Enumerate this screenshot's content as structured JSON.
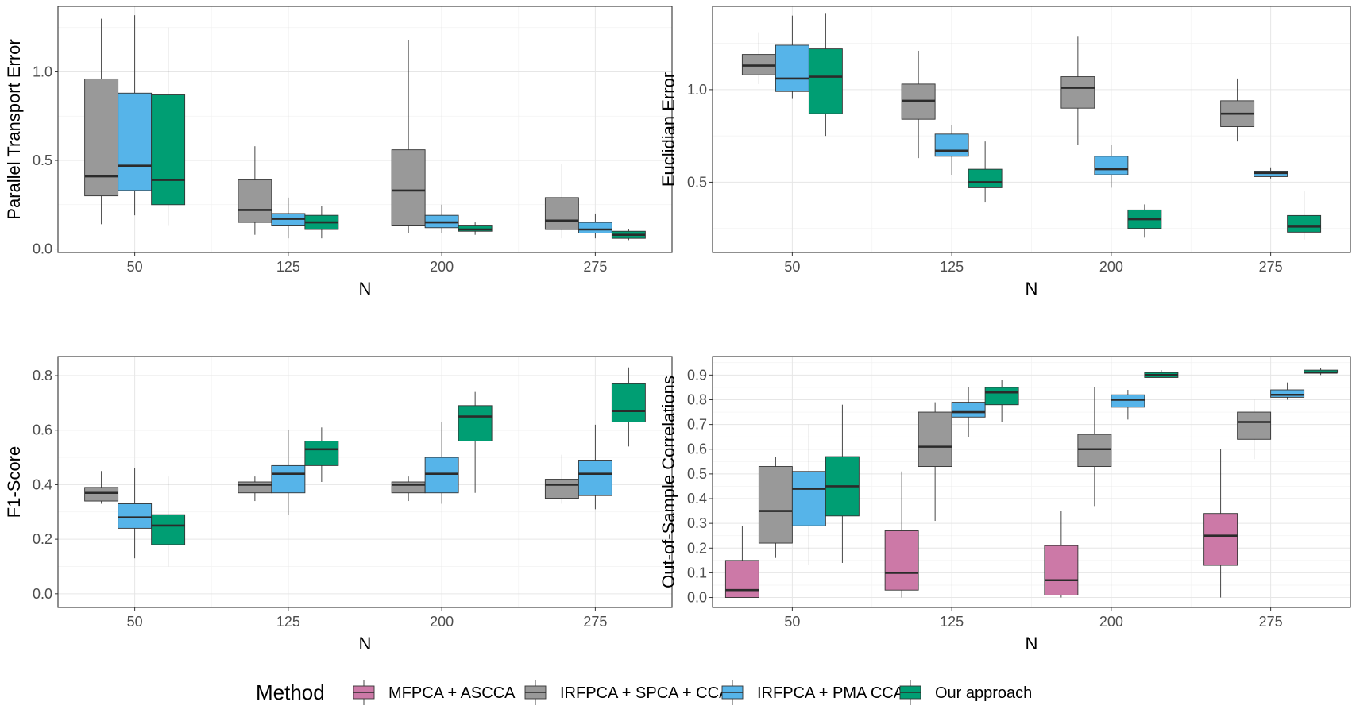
{
  "chart_data": [
    {
      "type": "boxplot",
      "panel": "top-left",
      "xlabel": "N",
      "ylabel": "Parallel Transport Error",
      "ylim": [
        -0.02,
        1.37
      ],
      "yticks": [
        0.0,
        0.5,
        1.0
      ],
      "ytick_labels": [
        "0.0",
        "0.5",
        "1.0"
      ],
      "categories": [
        "50",
        "125",
        "200",
        "275"
      ],
      "series": [
        {
          "name": "IRFPCA + SPCA + CCA",
          "color": "#999999",
          "boxes": [
            {
              "category": "50",
              "min": 0.14,
              "q1": 0.3,
              "median": 0.41,
              "q3": 0.96,
              "max": 1.3
            },
            {
              "category": "125",
              "min": 0.08,
              "q1": 0.15,
              "median": 0.22,
              "q3": 0.39,
              "max": 0.58
            },
            {
              "category": "200",
              "min": 0.09,
              "q1": 0.13,
              "median": 0.33,
              "q3": 0.56,
              "max": 1.18
            },
            {
              "category": "275",
              "min": 0.06,
              "q1": 0.11,
              "median": 0.16,
              "q3": 0.29,
              "max": 0.48
            }
          ]
        },
        {
          "name": "IRFPCA + PMA CCA",
          "color": "#56B4E9",
          "boxes": [
            {
              "category": "50",
              "min": 0.19,
              "q1": 0.33,
              "median": 0.47,
              "q3": 0.88,
              "max": 1.32
            },
            {
              "category": "125",
              "min": 0.06,
              "q1": 0.13,
              "median": 0.17,
              "q3": 0.2,
              "max": 0.29
            },
            {
              "category": "200",
              "min": 0.09,
              "q1": 0.12,
              "median": 0.15,
              "q3": 0.19,
              "max": 0.25
            },
            {
              "category": "275",
              "min": 0.06,
              "q1": 0.09,
              "median": 0.11,
              "q3": 0.15,
              "max": 0.2
            }
          ]
        },
        {
          "name": "Our approach",
          "color": "#009E73",
          "boxes": [
            {
              "category": "50",
              "min": 0.13,
              "q1": 0.25,
              "median": 0.39,
              "q3": 0.87,
              "max": 1.25
            },
            {
              "category": "125",
              "min": 0.06,
              "q1": 0.11,
              "median": 0.15,
              "q3": 0.19,
              "max": 0.24
            },
            {
              "category": "200",
              "min": 0.08,
              "q1": 0.1,
              "median": 0.11,
              "q3": 0.13,
              "max": 0.15
            },
            {
              "category": "275",
              "min": 0.05,
              "q1": 0.06,
              "median": 0.08,
              "q3": 0.1,
              "max": 0.11
            }
          ]
        }
      ]
    },
    {
      "type": "boxplot",
      "panel": "top-right",
      "xlabel": "N",
      "ylabel": "Euclidian Error",
      "ylim": [
        0.12,
        1.45
      ],
      "yticks": [
        0.5,
        1.0
      ],
      "ytick_labels": [
        "0.5",
        "1.0"
      ],
      "categories": [
        "50",
        "125",
        "200",
        "275"
      ],
      "series": [
        {
          "name": "IRFPCA + SPCA + CCA",
          "color": "#999999",
          "boxes": [
            {
              "category": "50",
              "min": 1.03,
              "q1": 1.08,
              "median": 1.13,
              "q3": 1.19,
              "max": 1.31
            },
            {
              "category": "125",
              "min": 0.63,
              "q1": 0.84,
              "median": 0.94,
              "q3": 1.03,
              "max": 1.21
            },
            {
              "category": "200",
              "min": 0.7,
              "q1": 0.9,
              "median": 1.01,
              "q3": 1.07,
              "max": 1.29
            },
            {
              "category": "275",
              "min": 0.72,
              "q1": 0.8,
              "median": 0.87,
              "q3": 0.94,
              "max": 1.06
            }
          ]
        },
        {
          "name": "IRFPCA + PMA CCA",
          "color": "#56B4E9",
          "boxes": [
            {
              "category": "50",
              "min": 0.95,
              "q1": 0.99,
              "median": 1.06,
              "q3": 1.24,
              "max": 1.4
            },
            {
              "category": "125",
              "min": 0.54,
              "q1": 0.64,
              "median": 0.67,
              "q3": 0.76,
              "max": 0.81
            },
            {
              "category": "200",
              "min": 0.47,
              "q1": 0.54,
              "median": 0.57,
              "q3": 0.64,
              "max": 0.7
            },
            {
              "category": "275",
              "min": 0.52,
              "q1": 0.53,
              "median": 0.55,
              "q3": 0.56,
              "max": 0.58
            }
          ]
        },
        {
          "name": "Our approach",
          "color": "#009E73",
          "boxes": [
            {
              "category": "50",
              "min": 0.75,
              "q1": 0.87,
              "median": 1.07,
              "q3": 1.22,
              "max": 1.41
            },
            {
              "category": "125",
              "min": 0.39,
              "q1": 0.47,
              "median": 0.5,
              "q3": 0.57,
              "max": 0.72
            },
            {
              "category": "200",
              "min": 0.2,
              "q1": 0.25,
              "median": 0.3,
              "q3": 0.35,
              "max": 0.38
            },
            {
              "category": "275",
              "min": 0.19,
              "q1": 0.23,
              "median": 0.26,
              "q3": 0.32,
              "max": 0.45
            }
          ]
        }
      ]
    },
    {
      "type": "boxplot",
      "panel": "bottom-left",
      "xlabel": "N",
      "ylabel": "F1-Score",
      "ylim": [
        -0.05,
        0.87
      ],
      "yticks": [
        0.0,
        0.2,
        0.4,
        0.6,
        0.8
      ],
      "ytick_labels": [
        "0.0",
        "0.2",
        "0.4",
        "0.6",
        "0.8"
      ],
      "categories": [
        "50",
        "125",
        "200",
        "275"
      ],
      "series": [
        {
          "name": "IRFPCA + SPCA + CCA",
          "color": "#999999",
          "boxes": [
            {
              "category": "50",
              "min": 0.33,
              "q1": 0.34,
              "median": 0.37,
              "q3": 0.39,
              "max": 0.45
            },
            {
              "category": "125",
              "min": 0.34,
              "q1": 0.37,
              "median": 0.4,
              "q3": 0.41,
              "max": 0.43
            },
            {
              "category": "200",
              "min": 0.34,
              "q1": 0.37,
              "median": 0.4,
              "q3": 0.41,
              "max": 0.43
            },
            {
              "category": "275",
              "min": 0.33,
              "q1": 0.35,
              "median": 0.4,
              "q3": 0.42,
              "max": 0.51
            }
          ]
        },
        {
          "name": "IRFPCA + PMA CCA",
          "color": "#56B4E9",
          "boxes": [
            {
              "category": "50",
              "min": 0.13,
              "q1": 0.24,
              "median": 0.28,
              "q3": 0.33,
              "max": 0.46
            },
            {
              "category": "125",
              "min": 0.29,
              "q1": 0.37,
              "median": 0.44,
              "q3": 0.47,
              "max": 0.6
            },
            {
              "category": "200",
              "min": 0.33,
              "q1": 0.37,
              "median": 0.44,
              "q3": 0.5,
              "max": 0.63
            },
            {
              "category": "275",
              "min": 0.31,
              "q1": 0.36,
              "median": 0.44,
              "q3": 0.49,
              "max": 0.62
            }
          ]
        },
        {
          "name": "Our approach",
          "color": "#009E73",
          "boxes": [
            {
              "category": "50",
              "min": 0.1,
              "q1": 0.18,
              "median": 0.25,
              "q3": 0.29,
              "max": 0.43
            },
            {
              "category": "125",
              "min": 0.41,
              "q1": 0.47,
              "median": 0.53,
              "q3": 0.56,
              "max": 0.61
            },
            {
              "category": "200",
              "min": 0.37,
              "q1": 0.56,
              "median": 0.65,
              "q3": 0.69,
              "max": 0.74
            },
            {
              "category": "275",
              "min": 0.54,
              "q1": 0.63,
              "median": 0.67,
              "q3": 0.77,
              "max": 0.83
            }
          ]
        }
      ]
    },
    {
      "type": "boxplot",
      "panel": "bottom-right",
      "xlabel": "N",
      "ylabel": "Out-of-Sample Correlations",
      "ylim": [
        -0.04,
        0.975
      ],
      "yticks": [
        0.0,
        0.1,
        0.2,
        0.3,
        0.4,
        0.5,
        0.6,
        0.7,
        0.8,
        0.9
      ],
      "ytick_labels": [
        "0.0",
        "0.1",
        "0.2",
        "0.3",
        "0.4",
        "0.5",
        "0.6",
        "0.7",
        "0.8",
        "0.9"
      ],
      "categories": [
        "50",
        "125",
        "200",
        "275"
      ],
      "series": [
        {
          "name": "MFPCA + ASCCA",
          "color": "#CC79A7",
          "boxes": [
            {
              "category": "50",
              "min": 0.0,
              "q1": 0.0,
              "median": 0.03,
              "q3": 0.15,
              "max": 0.29
            },
            {
              "category": "125",
              "min": 0.0,
              "q1": 0.03,
              "median": 0.1,
              "q3": 0.27,
              "max": 0.51
            },
            {
              "category": "200",
              "min": 0.0,
              "q1": 0.01,
              "median": 0.07,
              "q3": 0.21,
              "max": 0.35
            },
            {
              "category": "275",
              "min": 0.0,
              "q1": 0.13,
              "median": 0.25,
              "q3": 0.34,
              "max": 0.6
            }
          ]
        },
        {
          "name": "IRFPCA + SPCA + CCA",
          "color": "#999999",
          "boxes": [
            {
              "category": "50",
              "min": 0.16,
              "q1": 0.22,
              "median": 0.35,
              "q3": 0.53,
              "max": 0.57
            },
            {
              "category": "125",
              "min": 0.31,
              "q1": 0.53,
              "median": 0.61,
              "q3": 0.75,
              "max": 0.79
            },
            {
              "category": "200",
              "min": 0.37,
              "q1": 0.53,
              "median": 0.6,
              "q3": 0.66,
              "max": 0.85
            },
            {
              "category": "275",
              "min": 0.56,
              "q1": 0.64,
              "median": 0.71,
              "q3": 0.75,
              "max": 0.8
            }
          ]
        },
        {
          "name": "IRFPCA + PMA CCA",
          "color": "#56B4E9",
          "boxes": [
            {
              "category": "50",
              "min": 0.13,
              "q1": 0.29,
              "median": 0.44,
              "q3": 0.51,
              "max": 0.7
            },
            {
              "category": "125",
              "min": 0.65,
              "q1": 0.73,
              "median": 0.75,
              "q3": 0.79,
              "max": 0.85
            },
            {
              "category": "200",
              "min": 0.72,
              "q1": 0.77,
              "median": 0.8,
              "q3": 0.82,
              "max": 0.84
            },
            {
              "category": "275",
              "min": 0.8,
              "q1": 0.81,
              "median": 0.82,
              "q3": 0.84,
              "max": 0.87
            }
          ]
        },
        {
          "name": "Our approach",
          "color": "#009E73",
          "boxes": [
            {
              "category": "50",
              "min": 0.14,
              "q1": 0.33,
              "median": 0.45,
              "q3": 0.57,
              "max": 0.78
            },
            {
              "category": "125",
              "min": 0.71,
              "q1": 0.78,
              "median": 0.83,
              "q3": 0.85,
              "max": 0.88
            },
            {
              "category": "200",
              "min": 0.89,
              "q1": 0.89,
              "median": 0.9,
              "q3": 0.91,
              "max": 0.92
            },
            {
              "category": "275",
              "min": 0.9,
              "q1": 0.91,
              "median": 0.91,
              "q3": 0.92,
              "max": 0.93
            }
          ]
        }
      ]
    }
  ],
  "legend": {
    "title": "Method",
    "position": "bottom",
    "items": [
      {
        "label": "MFPCA + ASCCA",
        "color": "#CC79A7"
      },
      {
        "label": "IRFPCA + SPCA + CCA",
        "color": "#999999"
      },
      {
        "label": "IRFPCA + PMA CCA",
        "color": "#56B4E9"
      },
      {
        "label": "Our approach",
        "color": "#009E73"
      }
    ]
  }
}
